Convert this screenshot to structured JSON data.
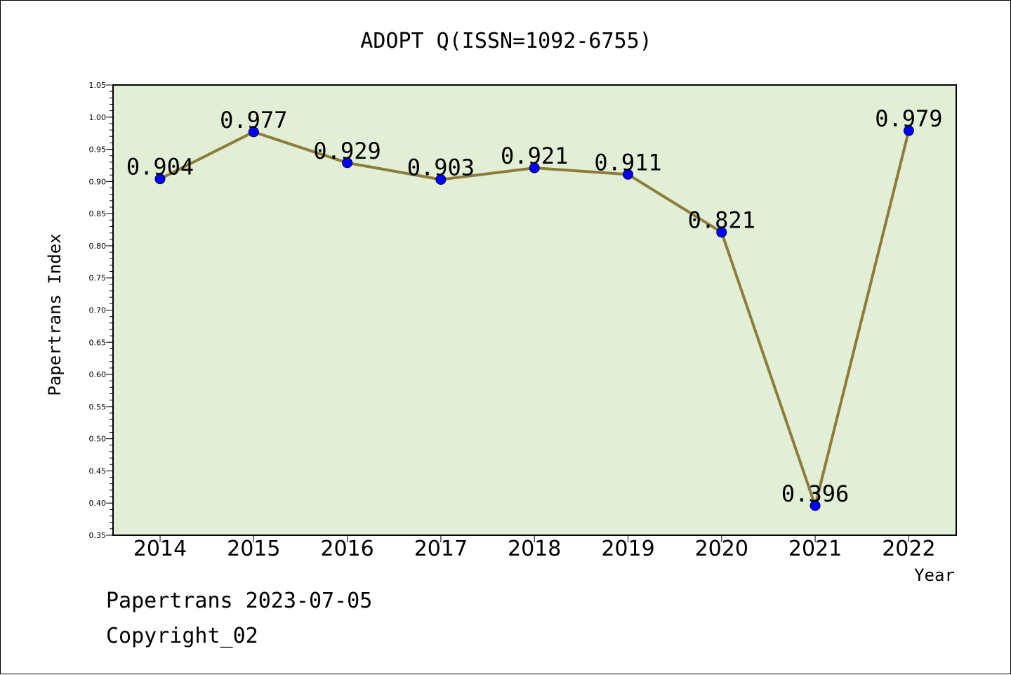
{
  "footer": {
    "line1": "Papertrans 2023-07-05",
    "line2": "Copyright_02"
  },
  "chart_data": {
    "type": "line",
    "title": "ADOPT Q(ISSN=1092-6755)",
    "xlabel": "Year",
    "ylabel": "Papertrans Index",
    "categories": [
      "2014",
      "2015",
      "2016",
      "2017",
      "2018",
      "2019",
      "2020",
      "2021",
      "2022"
    ],
    "series": [
      {
        "values": [
          0.904,
          0.977,
          0.929,
          0.903,
          0.921,
          0.911,
          0.821,
          0.396,
          0.979
        ]
      }
    ],
    "data_labels": [
      "0.904",
      "0.977",
      "0.929",
      "0.903",
      "0.921",
      "0.911",
      "0.821",
      "0.396",
      "0.979"
    ],
    "ylim": [
      0.35,
      1.05
    ],
    "yticks": [
      "0.35",
      "0.40",
      "0.45",
      "0.50",
      "0.55",
      "0.60",
      "0.65",
      "0.70",
      "0.75",
      "0.80",
      "0.85",
      "0.90",
      "0.95",
      "1.00",
      "1.05"
    ],
    "grid": false,
    "colors": {
      "plot_background": "#e2efd6",
      "line": "#8b7d3a",
      "marker": "#0000ff"
    }
  }
}
